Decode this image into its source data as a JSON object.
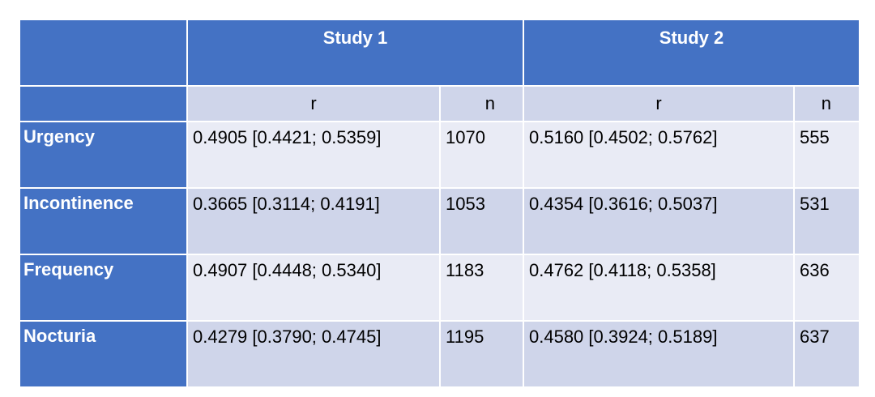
{
  "header": {
    "study1": "Study 1",
    "study2": "Study 2"
  },
  "subheader": {
    "r1": "r",
    "n1": "n",
    "r2": "r",
    "n2": "n"
  },
  "rows": [
    {
      "label": "Urgency",
      "r1": "0.4905 [0.4421; 0.5359]",
      "n1": "1070",
      "r2": "0.5160 [0.4502; 0.5762]",
      "n2": "555"
    },
    {
      "label": "Incontinence",
      "r1": "0.3665 [0.3114; 0.4191]",
      "n1": "1053",
      "r2": "0.4354 [0.3616; 0.5037]",
      "n2": "531"
    },
    {
      "label": "Frequency",
      "r1": "0.4907 [0.4448; 0.5340]",
      "n1": "1183",
      "r2": "0.4762 [0.4118; 0.5358]",
      "n2": "636"
    },
    {
      "label": "Nocturia",
      "r1": "0.4279 [0.3790; 0.4745]",
      "n1": "1195",
      "r2": "0.4580 [0.3924; 0.5189]",
      "n2": "637"
    }
  ],
  "colors": {
    "header_blue": "#4472c4",
    "band_dark": "#cfd5ea",
    "band_light": "#e9ebf5"
  }
}
